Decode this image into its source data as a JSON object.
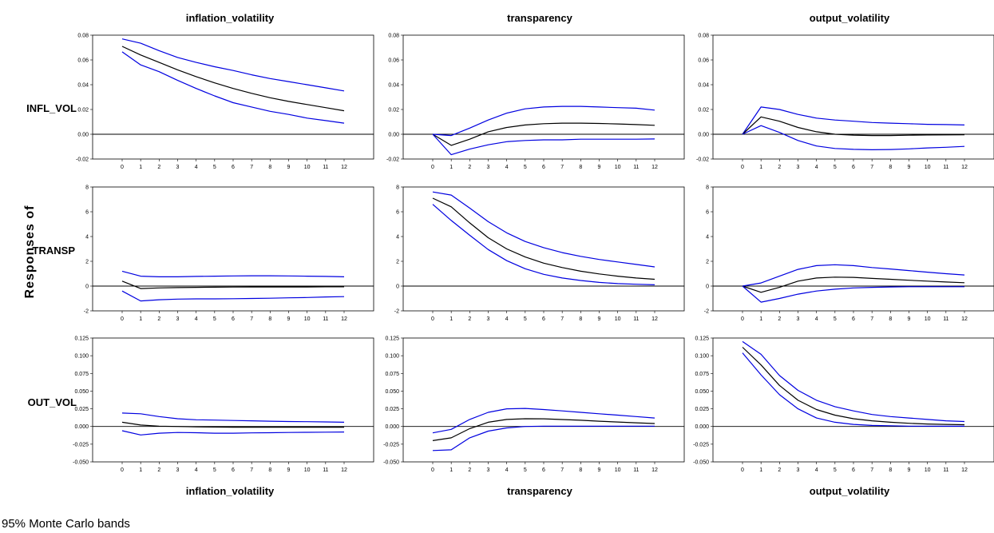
{
  "figure": {
    "ylabel": "Responses of",
    "footnote": "95% Monte Carlo bands",
    "columns": [
      "inflation_volatility",
      "transparency",
      "output_volatility"
    ],
    "rows": [
      "INFL_VOL",
      "TRANSP",
      "OUT_VOL"
    ]
  },
  "colors": {
    "band": "#0000e0",
    "response": "#000000",
    "zero_line": "#000000"
  },
  "chart_data": [
    {
      "type": "line",
      "row": "INFL_VOL",
      "column": "inflation_volatility",
      "x": [
        0,
        1,
        2,
        3,
        4,
        5,
        6,
        7,
        8,
        9,
        10,
        11,
        12
      ],
      "ylim": [
        -0.02,
        0.08
      ],
      "yticks": [
        "-0.02",
        "0.00",
        "0.02",
        "0.04",
        "0.06",
        "0.08"
      ],
      "ytick_values": [
        -0.02,
        0,
        0.02,
        0.04,
        0.06,
        0.08
      ],
      "series": [
        {
          "role": "upper",
          "values": [
            0.077,
            0.0735,
            0.0675,
            0.062,
            0.058,
            0.0545,
            0.0515,
            0.048,
            0.045,
            0.0425,
            0.04,
            0.0375,
            0.035
          ]
        },
        {
          "role": "response",
          "values": [
            0.071,
            0.064,
            0.058,
            0.052,
            0.0465,
            0.0415,
            0.037,
            0.033,
            0.0295,
            0.0265,
            0.024,
            0.0215,
            0.019
          ]
        },
        {
          "role": "lower",
          "values": [
            0.0665,
            0.056,
            0.0505,
            0.0435,
            0.037,
            0.031,
            0.0255,
            0.022,
            0.0185,
            0.016,
            0.013,
            0.011,
            0.009
          ]
        }
      ]
    },
    {
      "type": "line",
      "row": "INFL_VOL",
      "column": "transparency",
      "x": [
        0,
        1,
        2,
        3,
        4,
        5,
        6,
        7,
        8,
        9,
        10,
        11,
        12
      ],
      "ylim": [
        -0.02,
        0.08
      ],
      "yticks": [
        "-0.02",
        "0.00",
        "0.02",
        "0.04",
        "0.06",
        "0.08"
      ],
      "ytick_values": [
        -0.02,
        0,
        0.02,
        0.04,
        0.06,
        0.08
      ],
      "series": [
        {
          "role": "upper",
          "values": [
            0.0,
            -0.001,
            0.005,
            0.0115,
            0.017,
            0.0205,
            0.022,
            0.0225,
            0.0225,
            0.022,
            0.0215,
            0.021,
            0.0195
          ]
        },
        {
          "role": "response",
          "values": [
            0.0,
            -0.009,
            -0.004,
            0.002,
            0.0055,
            0.0075,
            0.0085,
            0.009,
            0.009,
            0.0087,
            0.0083,
            0.0078,
            0.0072
          ]
        },
        {
          "role": "lower",
          "values": [
            0.0,
            -0.0165,
            -0.012,
            -0.0085,
            -0.006,
            -0.005,
            -0.0045,
            -0.0045,
            -0.004,
            -0.004,
            -0.004,
            -0.004,
            -0.0038
          ]
        }
      ]
    },
    {
      "type": "line",
      "row": "INFL_VOL",
      "column": "output_volatility",
      "x": [
        0,
        1,
        2,
        3,
        4,
        5,
        6,
        7,
        8,
        9,
        10,
        11,
        12
      ],
      "ylim": [
        -0.02,
        0.08
      ],
      "yticks": [
        "-0.02",
        "0.00",
        "0.02",
        "0.04",
        "0.06",
        "0.08"
      ],
      "ytick_values": [
        -0.02,
        0,
        0.02,
        0.04,
        0.06,
        0.08
      ],
      "series": [
        {
          "role": "upper",
          "values": [
            0.0,
            0.022,
            0.02,
            0.016,
            0.013,
            0.0115,
            0.0105,
            0.0095,
            0.009,
            0.0085,
            0.008,
            0.0078,
            0.0075
          ]
        },
        {
          "role": "response",
          "values": [
            0.0,
            0.014,
            0.0105,
            0.0055,
            0.002,
            0.0,
            -0.0007,
            -0.001,
            -0.001,
            -0.0008,
            -0.0006,
            -0.0005,
            -0.0004
          ]
        },
        {
          "role": "lower",
          "values": [
            0.0,
            0.007,
            0.0015,
            -0.005,
            -0.0095,
            -0.0115,
            -0.0122,
            -0.0125,
            -0.0123,
            -0.0118,
            -0.011,
            -0.0105,
            -0.0098
          ]
        }
      ]
    },
    {
      "type": "line",
      "row": "TRANSP",
      "column": "inflation_volatility",
      "x": [
        0,
        1,
        2,
        3,
        4,
        5,
        6,
        7,
        8,
        9,
        10,
        11,
        12
      ],
      "ylim": [
        -2,
        8
      ],
      "yticks": [
        "-2",
        "0",
        "2",
        "4",
        "6",
        "8"
      ],
      "ytick_values": [
        -2,
        0,
        2,
        4,
        6,
        8
      ],
      "series": [
        {
          "role": "upper",
          "values": [
            1.2,
            0.8,
            0.75,
            0.75,
            0.78,
            0.8,
            0.82,
            0.83,
            0.83,
            0.82,
            0.8,
            0.78,
            0.75
          ]
        },
        {
          "role": "response",
          "values": [
            0.4,
            -0.2,
            -0.15,
            -0.12,
            -0.1,
            -0.09,
            -0.08,
            -0.07,
            -0.07,
            -0.07,
            -0.07,
            -0.06,
            -0.06
          ]
        },
        {
          "role": "lower",
          "values": [
            -0.4,
            -1.2,
            -1.1,
            -1.05,
            -1.03,
            -1.03,
            -1.02,
            -1.0,
            -0.98,
            -0.95,
            -0.92,
            -0.88,
            -0.85
          ]
        }
      ]
    },
    {
      "type": "line",
      "row": "TRANSP",
      "column": "transparency",
      "x": [
        0,
        1,
        2,
        3,
        4,
        5,
        6,
        7,
        8,
        9,
        10,
        11,
        12
      ],
      "ylim": [
        -2,
        8
      ],
      "yticks": [
        "-2",
        "0",
        "2",
        "4",
        "6",
        "8"
      ],
      "ytick_values": [
        -2,
        0,
        2,
        4,
        6,
        8
      ],
      "series": [
        {
          "role": "upper",
          "values": [
            7.6,
            7.35,
            6.3,
            5.2,
            4.3,
            3.6,
            3.1,
            2.7,
            2.4,
            2.15,
            1.95,
            1.75,
            1.55
          ]
        },
        {
          "role": "response",
          "values": [
            7.1,
            6.4,
            5.1,
            3.9,
            3.0,
            2.35,
            1.85,
            1.5,
            1.2,
            0.98,
            0.8,
            0.65,
            0.55
          ]
        },
        {
          "role": "lower",
          "values": [
            6.6,
            5.3,
            4.1,
            2.95,
            2.05,
            1.4,
            0.95,
            0.65,
            0.45,
            0.3,
            0.2,
            0.15,
            0.1
          ]
        }
      ]
    },
    {
      "type": "line",
      "row": "TRANSP",
      "column": "output_volatility",
      "x": [
        0,
        1,
        2,
        3,
        4,
        5,
        6,
        7,
        8,
        9,
        10,
        11,
        12
      ],
      "ylim": [
        -2,
        8
      ],
      "yticks": [
        "-2",
        "0",
        "2",
        "4",
        "6",
        "8"
      ],
      "ytick_values": [
        -2,
        0,
        2,
        4,
        6,
        8
      ],
      "series": [
        {
          "role": "upper",
          "values": [
            0.0,
            0.25,
            0.8,
            1.35,
            1.65,
            1.72,
            1.65,
            1.5,
            1.38,
            1.25,
            1.12,
            1.0,
            0.9
          ]
        },
        {
          "role": "response",
          "values": [
            0.0,
            -0.5,
            -0.1,
            0.4,
            0.65,
            0.72,
            0.7,
            0.62,
            0.55,
            0.47,
            0.4,
            0.33,
            0.27
          ]
        },
        {
          "role": "lower",
          "values": [
            0.0,
            -1.3,
            -1.0,
            -0.65,
            -0.4,
            -0.25,
            -0.15,
            -0.1,
            -0.07,
            -0.05,
            -0.05,
            -0.05,
            -0.05
          ]
        }
      ]
    },
    {
      "type": "line",
      "row": "OUT_VOL",
      "column": "inflation_volatility",
      "x": [
        0,
        1,
        2,
        3,
        4,
        5,
        6,
        7,
        8,
        9,
        10,
        11,
        12
      ],
      "ylim": [
        -0.05,
        0.125
      ],
      "yticks": [
        "-0.050",
        "-0.025",
        "0.000",
        "0.025",
        "0.050",
        "0.075",
        "0.100",
        "0.125"
      ],
      "ytick_values": [
        -0.05,
        -0.025,
        0,
        0.025,
        0.05,
        0.075,
        0.1,
        0.125
      ],
      "series": [
        {
          "role": "upper",
          "values": [
            0.019,
            0.018,
            0.014,
            0.011,
            0.0095,
            0.009,
            0.0085,
            0.008,
            0.0075,
            0.007,
            0.0068,
            0.0065,
            0.006
          ]
        },
        {
          "role": "response",
          "values": [
            0.006,
            0.002,
            0.0005,
            0.0,
            -0.0005,
            -0.0008,
            -0.001,
            -0.001,
            -0.001,
            -0.001,
            -0.001,
            -0.001,
            -0.001
          ]
        },
        {
          "role": "lower",
          "values": [
            -0.006,
            -0.012,
            -0.0095,
            -0.0085,
            -0.0088,
            -0.0095,
            -0.0095,
            -0.009,
            -0.0088,
            -0.0085,
            -0.0082,
            -0.008,
            -0.0078
          ]
        }
      ]
    },
    {
      "type": "line",
      "row": "OUT_VOL",
      "column": "transparency",
      "x": [
        0,
        1,
        2,
        3,
        4,
        5,
        6,
        7,
        8,
        9,
        10,
        11,
        12
      ],
      "ylim": [
        -0.05,
        0.125
      ],
      "yticks": [
        "-0.050",
        "-0.025",
        "0.000",
        "0.025",
        "0.050",
        "0.075",
        "0.100",
        "0.125"
      ],
      "ytick_values": [
        -0.05,
        -0.025,
        0,
        0.025,
        0.05,
        0.075,
        0.1,
        0.125
      ],
      "series": [
        {
          "role": "upper",
          "values": [
            -0.009,
            -0.004,
            0.01,
            0.02,
            0.025,
            0.0255,
            0.024,
            0.022,
            0.02,
            0.018,
            0.016,
            0.014,
            0.012
          ]
        },
        {
          "role": "response",
          "values": [
            -0.02,
            -0.016,
            -0.003,
            0.006,
            0.01,
            0.011,
            0.0108,
            0.0098,
            0.0088,
            0.0075,
            0.0063,
            0.0052,
            0.0042
          ]
        },
        {
          "role": "lower",
          "values": [
            -0.034,
            -0.033,
            -0.016,
            -0.0065,
            -0.002,
            0.0,
            0.0005,
            0.0005,
            0.0005,
            0.0005,
            0.0005,
            0.0005,
            0.0005
          ]
        }
      ]
    },
    {
      "type": "line",
      "row": "OUT_VOL",
      "column": "output_volatility",
      "x": [
        0,
        1,
        2,
        3,
        4,
        5,
        6,
        7,
        8,
        9,
        10,
        11,
        12
      ],
      "ylim": [
        -0.05,
        0.125
      ],
      "yticks": [
        "-0.050",
        "-0.025",
        "0.000",
        "0.025",
        "0.050",
        "0.075",
        "0.100",
        "0.125"
      ],
      "ytick_values": [
        -0.05,
        -0.025,
        0,
        0.025,
        0.05,
        0.075,
        0.1,
        0.125
      ],
      "series": [
        {
          "role": "upper",
          "values": [
            0.12,
            0.102,
            0.072,
            0.051,
            0.037,
            0.028,
            0.022,
            0.017,
            0.014,
            0.012,
            0.01,
            0.008,
            0.007
          ]
        },
        {
          "role": "response",
          "values": [
            0.112,
            0.087,
            0.058,
            0.037,
            0.024,
            0.016,
            0.011,
            0.008,
            0.006,
            0.0045,
            0.0035,
            0.003,
            0.0025
          ]
        },
        {
          "role": "lower",
          "values": [
            0.104,
            0.073,
            0.045,
            0.025,
            0.012,
            0.006,
            0.003,
            0.0015,
            0.001,
            0.0005,
            0.0005,
            0.0003,
            0.0003
          ]
        }
      ]
    }
  ]
}
